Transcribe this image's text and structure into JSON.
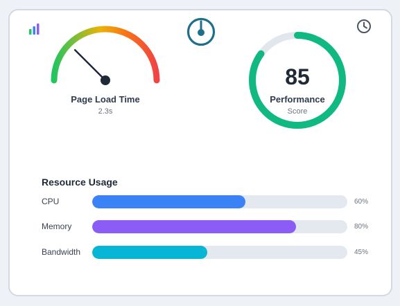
{
  "icons": {
    "top_left": "bar-chart-icon",
    "top_center": "power-gauge-icon",
    "top_right": "clock-icon"
  },
  "gauge": {
    "title": "Page Load Time",
    "value_label": "2.3s",
    "level": 0.25,
    "gradient": [
      "#22c55e",
      "#eab308",
      "#f97316",
      "#ef4444"
    ]
  },
  "performance": {
    "score": "85",
    "score_value": 85,
    "label": "Performance",
    "sub_label": "Score",
    "ring_color": "#10b981",
    "track_color": "#e2e7ee"
  },
  "resource_usage": {
    "title": "Resource Usage",
    "items": [
      {
        "label": "CPU",
        "percent": 60,
        "percent_label": "60%",
        "color": "#3b82f6"
      },
      {
        "label": "Memory",
        "percent": 80,
        "percent_label": "80%",
        "color": "#8b5cf6"
      },
      {
        "label": "Bandwidth",
        "percent": 45,
        "percent_label": "45%",
        "color": "#06b6d4"
      }
    ]
  },
  "colors": {
    "accent_teal": "#1f6f8b",
    "icon_gray": "#4b5563"
  }
}
